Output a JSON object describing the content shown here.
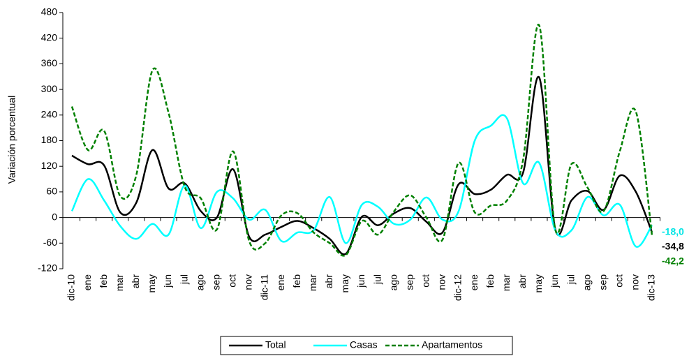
{
  "chart_data": {
    "type": "line",
    "y_label": "Variación porcentual",
    "categories": [
      "dic-10",
      "ene",
      "feb",
      "mar",
      "abr",
      "may",
      "jun",
      "jul",
      "ago",
      "sep",
      "oct",
      "nov",
      "dic-11",
      "ene",
      "feb",
      "mar",
      "abr",
      "may",
      "jun",
      "jul",
      "ago",
      "sep",
      "oct",
      "nov",
      "dic-12",
      "ene",
      "feb",
      "mar",
      "abr",
      "may",
      "jun",
      "jul",
      "ago",
      "sep",
      "oct",
      "nov",
      "dic-13"
    ],
    "series": [
      {
        "name": "Total",
        "color": "#000000",
        "dashed": false,
        "values": [
          145,
          125,
          122,
          12,
          35,
          158,
          68,
          80,
          15,
          0,
          113,
          -45,
          -40,
          -22,
          -8,
          -25,
          -50,
          -85,
          2,
          -18,
          10,
          22,
          -10,
          -35,
          78,
          55,
          65,
          100,
          105,
          328,
          -28,
          40,
          62,
          18,
          98,
          60,
          -34.8
        ],
        "value_labels": [
          null,
          null,
          null,
          null,
          null,
          null,
          null,
          null,
          null,
          null,
          null,
          null,
          null,
          null,
          null,
          null,
          null,
          null,
          null,
          null,
          null,
          null,
          null,
          null,
          null,
          null,
          null,
          null,
          null,
          null,
          null,
          null,
          null,
          null,
          null,
          null,
          "-34,8"
        ]
      },
      {
        "name": "Casas",
        "color": "#00ffff",
        "dashed": false,
        "values": [
          15,
          90,
          40,
          -20,
          -50,
          -15,
          -40,
          75,
          -25,
          60,
          45,
          -5,
          18,
          -55,
          -35,
          -30,
          48,
          -60,
          30,
          25,
          -15,
          -5,
          47,
          -5,
          15,
          180,
          215,
          232,
          80,
          128,
          -30,
          -30,
          48,
          5,
          30,
          -68,
          -18.0
        ],
        "value_labels": [
          null,
          null,
          null,
          null,
          null,
          null,
          null,
          null,
          null,
          null,
          null,
          null,
          null,
          null,
          null,
          null,
          null,
          null,
          null,
          null,
          null,
          null,
          null,
          null,
          null,
          null,
          null,
          null,
          null,
          null,
          null,
          null,
          null,
          null,
          null,
          null,
          "-18,0"
        ]
      },
      {
        "name": "Apartamentos",
        "color": "#008000",
        "dashed": true,
        "values": [
          260,
          158,
          203,
          50,
          100,
          345,
          245,
          72,
          45,
          -28,
          155,
          -55,
          -60,
          5,
          10,
          -35,
          -60,
          -88,
          -8,
          -40,
          15,
          52,
          0,
          -52,
          128,
          12,
          28,
          40,
          135,
          450,
          -28,
          125,
          70,
          15,
          155,
          248,
          -42.2
        ],
        "value_labels": [
          null,
          null,
          null,
          null,
          null,
          null,
          null,
          null,
          null,
          null,
          null,
          null,
          null,
          null,
          null,
          null,
          null,
          null,
          null,
          null,
          null,
          null,
          null,
          null,
          null,
          null,
          null,
          null,
          null,
          null,
          null,
          null,
          null,
          null,
          null,
          null,
          "-42,2"
        ]
      }
    ],
    "ylim": [
      -120,
      480
    ],
    "yticks": [
      -120,
      -60,
      0,
      60,
      120,
      180,
      240,
      300,
      360,
      420,
      480
    ],
    "grid": false,
    "legend": "bottom"
  }
}
